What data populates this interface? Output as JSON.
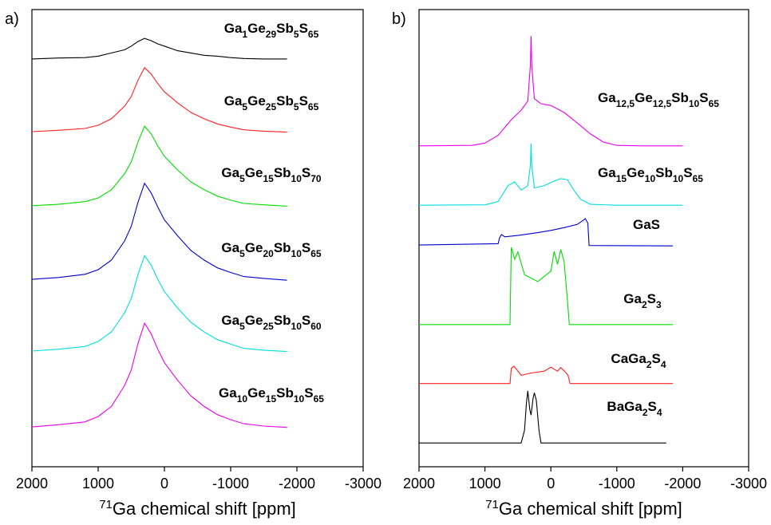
{
  "chart_data": [
    {
      "type": "line",
      "panel_label": "a)",
      "xlabel": "71Ga chemical shift [ppm]",
      "xlim": [
        2000,
        -3000
      ],
      "xticks": [
        2000,
        1000,
        0,
        -1000,
        -2000,
        -3000
      ],
      "ylim": [
        0,
        100
      ],
      "series": [
        {
          "name": "Ga1Ge29Sb5S65",
          "color": "#000000",
          "x": [
            2000,
            1600,
            1200,
            1000,
            800,
            600,
            500,
            400,
            300,
            200,
            100,
            0,
            -200,
            -400,
            -600,
            -800,
            -1000,
            -1200,
            -1500,
            -1850
          ],
          "values": [
            89.2,
            89.4,
            89.5,
            89.8,
            90.5,
            91.2,
            92,
            93,
            93.7,
            93.2,
            92.5,
            92,
            91,
            90.5,
            90,
            89.8,
            89.5,
            89.3,
            89.2,
            89.2
          ]
        },
        {
          "name": "Ga5Ge25Sb5S65",
          "color": "#ff2020",
          "x": [
            2000,
            1600,
            1200,
            1000,
            800,
            600,
            500,
            400,
            300,
            200,
            100,
            0,
            -200,
            -400,
            -600,
            -800,
            -1000,
            -1200,
            -1500,
            -1850
          ],
          "values": [
            73.3,
            73.6,
            74.0,
            74.7,
            76.1,
            78.9,
            81.0,
            84.5,
            87.3,
            85.9,
            83.8,
            82.0,
            79.6,
            77.5,
            76.1,
            75.0,
            74.3,
            73.7,
            73.4,
            73.2
          ]
        },
        {
          "name": "Ga5Ge15Sb10S70",
          "color": "#00dd00",
          "x": [
            2000,
            1600,
            1200,
            1000,
            800,
            600,
            500,
            400,
            300,
            200,
            100,
            0,
            -200,
            -400,
            -600,
            -800,
            -1000,
            -1200,
            -1500,
            -1850
          ],
          "values": [
            57.1,
            57.4,
            58.0,
            58.8,
            60.6,
            64.1,
            66.7,
            71.0,
            74.5,
            72.8,
            70.2,
            67.9,
            64.9,
            62.3,
            60.6,
            59.2,
            58.3,
            57.6,
            57.3,
            57.0
          ]
        },
        {
          "name": "Ga5Ge20Sb10S65",
          "color": "#0000cc",
          "x": [
            2000,
            1600,
            1200,
            1000,
            800,
            600,
            500,
            400,
            300,
            200,
            100,
            0,
            -200,
            -400,
            -600,
            -800,
            -1000,
            -1200,
            -1500,
            -1850
          ],
          "values": [
            41.0,
            41.4,
            42.1,
            43.1,
            45.2,
            49.4,
            52.6,
            57.8,
            62.0,
            59.9,
            56.8,
            54.0,
            50.5,
            47.3,
            45.2,
            43.5,
            42.5,
            41.6,
            41.2,
            40.8
          ]
        },
        {
          "name": "Ga5Ge25Sb10S60",
          "color": "#00dddd",
          "x": [
            2000,
            1600,
            1200,
            1000,
            800,
            600,
            500,
            400,
            300,
            200,
            100,
            0,
            -200,
            -400,
            -600,
            -800,
            -1000,
            -1200,
            -1500,
            -1850
          ],
          "values": [
            25.3,
            25.7,
            26.3,
            27.4,
            29.5,
            33.7,
            36.8,
            42.0,
            46.2,
            44.1,
            41.0,
            38.3,
            34.7,
            31.6,
            29.5,
            27.8,
            26.8,
            25.9,
            25.5,
            25.2
          ]
        },
        {
          "name": "Ga10Ge15Sb10S65",
          "color": "#ee00ee",
          "x": [
            2000,
            1600,
            1200,
            1000,
            800,
            600,
            500,
            400,
            300,
            200,
            100,
            0,
            -200,
            -400,
            -600,
            -800,
            -1000,
            -1200,
            -1500,
            -1850
          ],
          "values": [
            8.7,
            9.2,
            9.8,
            11.0,
            13.2,
            17.8,
            21.2,
            26.9,
            31.4,
            29.1,
            25.7,
            22.8,
            18.9,
            15.5,
            13.2,
            11.4,
            10.3,
            9.4,
            8.9,
            8.6
          ]
        }
      ]
    },
    {
      "type": "line",
      "panel_label": "b)",
      "xlabel": "71Ga chemical shift [ppm]",
      "xlim": [
        2000,
        -3000
      ],
      "xticks": [
        2000,
        1000,
        0,
        -1000,
        -2000,
        -3000
      ],
      "ylim": [
        0,
        100
      ],
      "series": [
        {
          "name": "Ga12,5Ge12,5Sb10S65",
          "color": "#ee00ee",
          "x": [
            2000,
            1200,
            1000,
            800,
            600,
            450,
            350,
            310,
            300,
            290,
            250,
            150,
            0,
            -200,
            -400,
            -600,
            -800,
            -1000,
            -1400,
            -2000
          ],
          "values": [
            70.2,
            70.3,
            70.8,
            72.5,
            75.9,
            78.0,
            80.0,
            88,
            94.2,
            88,
            80.5,
            79.4,
            79.0,
            77.5,
            75.2,
            72.8,
            71.0,
            70.3,
            70.2,
            70.2
          ]
        },
        {
          "name": "Ga15Ge10Sb10S65",
          "color": "#00dddd",
          "x": [
            2000,
            1000,
            800,
            650,
            550,
            450,
            350,
            310,
            300,
            290,
            250,
            100,
            -50,
            -150,
            -250,
            -350,
            -450,
            -600,
            -1000,
            -2000
          ],
          "values": [
            57.2,
            57.3,
            58.0,
            61.5,
            62.3,
            60.5,
            61.5,
            66,
            70.7,
            66,
            61.0,
            61.5,
            62.5,
            63.0,
            62.8,
            60.5,
            58.5,
            57.4,
            57.2,
            57.2
          ]
        },
        {
          "name": "GaS",
          "color": "#0000cc",
          "x": [
            2000,
            800,
            780,
            750,
            700,
            500,
            200,
            0,
            -200,
            -400,
            -500,
            -520,
            -560,
            -580,
            -1850
          ],
          "values": [
            48.5,
            48.8,
            50.0,
            50.8,
            50.3,
            50.6,
            51.2,
            51.7,
            52.3,
            53.0,
            54.0,
            54.3,
            53.3,
            48.4,
            48.3
          ]
        },
        {
          "name": "Ga2S3",
          "color": "#00dd00",
          "x": [
            2000,
            620,
            600,
            550,
            500,
            400,
            200,
            0,
            -50,
            -100,
            -150,
            -200,
            -250,
            -280,
            -1850
          ],
          "values": [
            31.1,
            31.1,
            48.0,
            45.4,
            47.0,
            42.0,
            40.5,
            42.8,
            47.1,
            44.3,
            47.5,
            45.0,
            36.6,
            31.1,
            31.1
          ]
        },
        {
          "name": "CaGa2S4",
          "color": "#ff2020",
          "x": [
            2000,
            620,
            600,
            560,
            520,
            450,
            300,
            100,
            0,
            -100,
            -150,
            -220,
            -260,
            -290,
            -1850
          ],
          "values": [
            18.2,
            18.2,
            21.5,
            22.0,
            21.3,
            20.0,
            20.5,
            20.9,
            21.8,
            20.9,
            21.7,
            20.7,
            20.0,
            18.2,
            18.2
          ]
        },
        {
          "name": "BaGa2S4",
          "color": "#000000",
          "x": [
            2000,
            450,
            400,
            370,
            350,
            320,
            300,
            270,
            250,
            220,
            180,
            150,
            -1750
          ],
          "values": [
            5.2,
            5.2,
            8,
            14,
            16.6,
            12.5,
            11.3,
            15,
            16.2,
            14.5,
            8,
            5.2,
            5.2
          ]
        }
      ]
    }
  ]
}
